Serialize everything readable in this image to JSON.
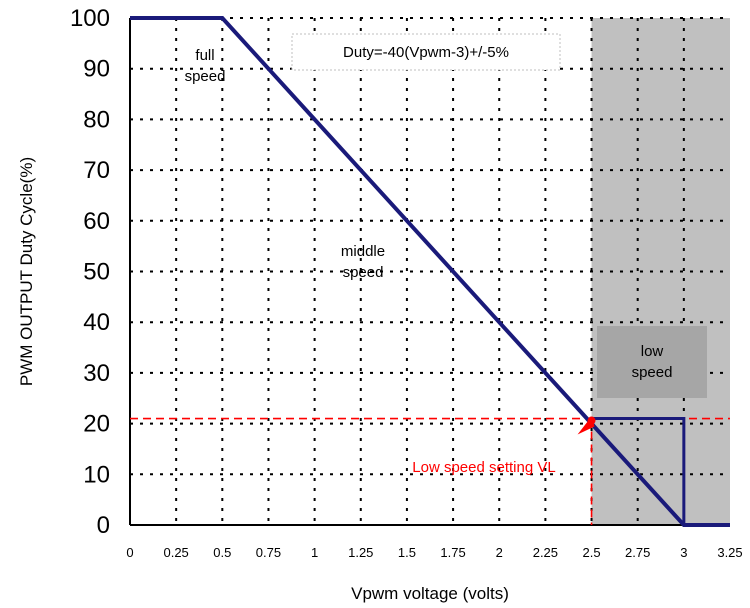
{
  "chart_data": {
    "type": "line",
    "xlabel": "Vpwm voltage (volts)",
    "ylabel": "PWM OUTPUT Duty Cycle(%)",
    "xlim": [
      0,
      3.25
    ],
    "ylim": [
      0,
      100
    ],
    "x_ticks": [
      "0",
      "0.25",
      "0.5",
      "0.75",
      "1",
      "1.25",
      "1.5",
      "1.75",
      "2",
      "2.25",
      "2.5",
      "2.75",
      "3",
      "3.25"
    ],
    "y_ticks": [
      "0",
      "10",
      "20",
      "30",
      "40",
      "50",
      "60",
      "70",
      "80",
      "90",
      "100"
    ],
    "grid": true,
    "series": [
      {
        "x": [
          0,
          0.5,
          2.5,
          3.0,
          3.25
        ],
        "y": [
          100,
          100,
          20,
          0,
          0
        ]
      },
      {
        "x": [
          2.5,
          3.0,
          3.0
        ],
        "y": [
          21,
          21,
          0
        ]
      }
    ],
    "reference_lines": {
      "y": 21,
      "x": 2.5
    },
    "shaded_region": {
      "x_from": 2.5,
      "x_to": 3.25
    },
    "annotations": [
      {
        "lines": [
          "full",
          "speed"
        ]
      },
      {
        "lines": [
          "Duty=-40(Vpwm-3)+/-5%"
        ]
      },
      {
        "lines": [
          "middle",
          "speed"
        ]
      },
      {
        "lines": [
          "low",
          "speed"
        ]
      },
      {
        "lines": [
          "Low speed setting VL"
        ]
      }
    ],
    "colors": {
      "line": "#1a1a7a",
      "reference": "#ff0000",
      "shade": "#c0c0c0",
      "label_box": "#a6a6a6"
    }
  }
}
